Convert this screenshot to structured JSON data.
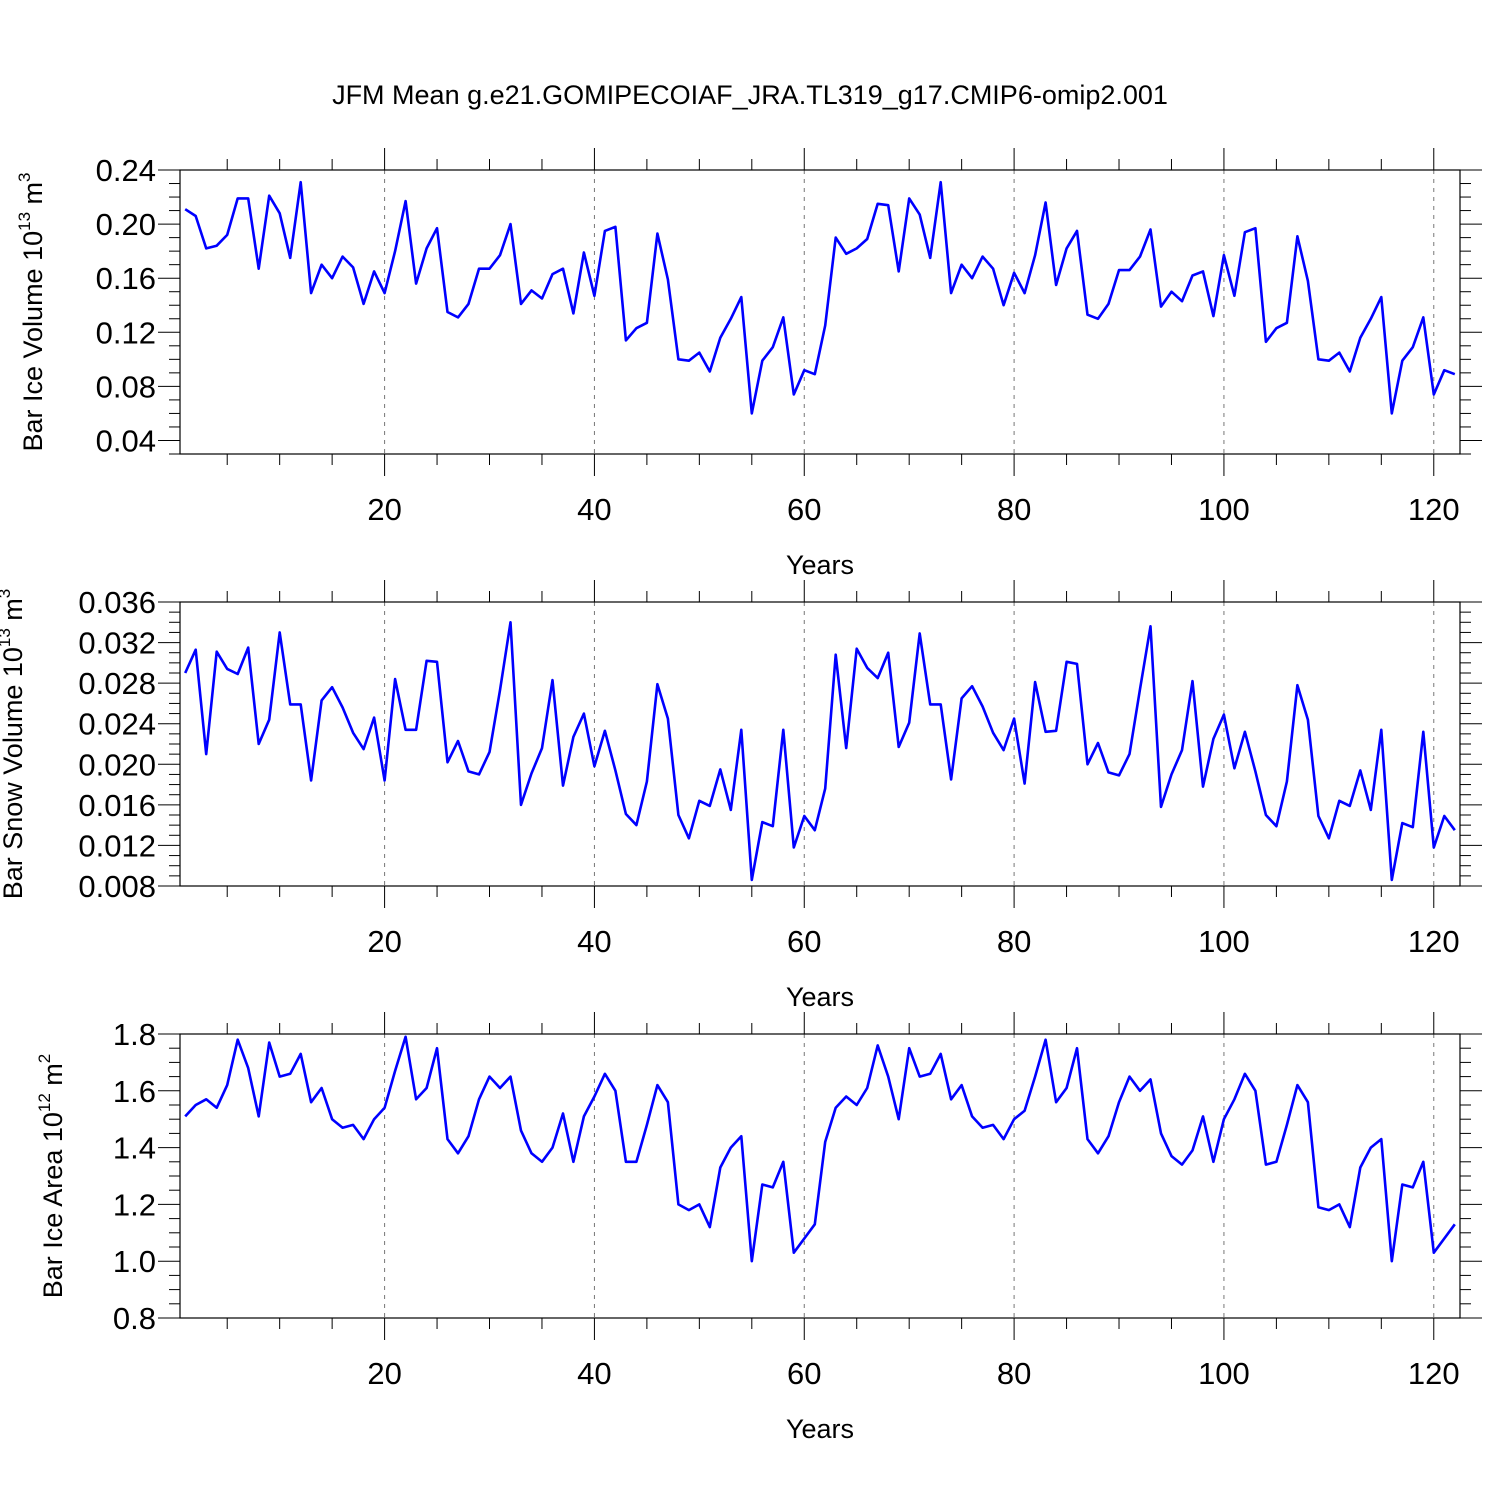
{
  "title": "JFM Mean g.e21.GOMIPECOIAF_JRA.TL319_g17.CMIP6-omip2.001",
  "chart_data": [
    {
      "type": "line",
      "ylabel_main": "Bar Ice Volume 10",
      "ylabel_sup": "13",
      "ylabel_unit": "m",
      "ylabel_unit_sup": "3",
      "xlabel": "Years",
      "xlim": [
        0.5,
        122.5
      ],
      "ylim": [
        0.03,
        0.24
      ],
      "xticks": [
        20,
        40,
        60,
        80,
        100,
        120
      ],
      "yticks": [
        0.04,
        0.08,
        0.12,
        0.16,
        0.2,
        0.24
      ],
      "ytick_labels": [
        "0.04",
        "0.08",
        "0.12",
        "0.16",
        "0.20",
        "0.24"
      ],
      "x_start": 1,
      "line_color": "#0000ff",
      "values": [
        0.211,
        0.206,
        0.182,
        0.184,
        0.192,
        0.219,
        0.219,
        0.167,
        0.221,
        0.208,
        0.175,
        0.231,
        0.149,
        0.17,
        0.16,
        0.176,
        0.168,
        0.141,
        0.165,
        0.149,
        0.18,
        0.217,
        0.156,
        0.182,
        0.197,
        0.135,
        0.131,
        0.141,
        0.167,
        0.167,
        0.177,
        0.2,
        0.141,
        0.151,
        0.145,
        0.163,
        0.167,
        0.134,
        0.179,
        0.147,
        0.195,
        0.198,
        0.114,
        0.123,
        0.127,
        0.193,
        0.159,
        0.1,
        0.099,
        0.105,
        0.091,
        0.116,
        0.13,
        0.146,
        0.06,
        0.099,
        0.109,
        0.131,
        0.074,
        0.092,
        0.089,
        0.125,
        0.19,
        0.178,
        0.182,
        0.189,
        0.215,
        0.214,
        0.165,
        0.219,
        0.207,
        0.175,
        0.231,
        0.149,
        0.17,
        0.16,
        0.176,
        0.167,
        0.14,
        0.164,
        0.149,
        0.177,
        0.216,
        0.155,
        0.182,
        0.195,
        0.133,
        0.13,
        0.141,
        0.166,
        0.166,
        0.176,
        0.196,
        0.139,
        0.15,
        0.143,
        0.162,
        0.165,
        0.132,
        0.177,
        0.147,
        0.194,
        0.197,
        0.113,
        0.123,
        0.127,
        0.191,
        0.158,
        0.1,
        0.099,
        0.105,
        0.091,
        0.116,
        0.13,
        0.146,
        0.06,
        0.099,
        0.109,
        0.131,
        0.074,
        0.092,
        0.089
      ]
    },
    {
      "type": "line",
      "ylabel_main": "Bar Snow Volume 10",
      "ylabel_sup": "13",
      "ylabel_unit": "m",
      "ylabel_unit_sup": "3",
      "xlabel": "Years",
      "xlim": [
        0.5,
        122.5
      ],
      "ylim": [
        0.008,
        0.036
      ],
      "xticks": [
        20,
        40,
        60,
        80,
        100,
        120
      ],
      "yticks": [
        0.008,
        0.012,
        0.016,
        0.02,
        0.024,
        0.028,
        0.032,
        0.036
      ],
      "ytick_labels": [
        "0.008",
        "0.012",
        "0.016",
        "0.020",
        "0.024",
        "0.028",
        "0.032",
        "0.036"
      ],
      "x_start": 1,
      "line_color": "#0000ff",
      "values": [
        0.029,
        0.0313,
        0.021,
        0.0311,
        0.0294,
        0.0289,
        0.0315,
        0.022,
        0.0244,
        0.033,
        0.0259,
        0.0259,
        0.0184,
        0.0263,
        0.0276,
        0.0256,
        0.0231,
        0.0215,
        0.0246,
        0.0184,
        0.0284,
        0.0234,
        0.0234,
        0.0302,
        0.0301,
        0.0202,
        0.0223,
        0.0193,
        0.019,
        0.0212,
        0.0273,
        0.034,
        0.016,
        0.0191,
        0.0216,
        0.0283,
        0.0179,
        0.0227,
        0.025,
        0.0198,
        0.0233,
        0.0194,
        0.0151,
        0.014,
        0.0183,
        0.0279,
        0.0245,
        0.015,
        0.0127,
        0.0164,
        0.0159,
        0.0195,
        0.0155,
        0.0234,
        0.0086,
        0.0143,
        0.0139,
        0.0234,
        0.0118,
        0.0149,
        0.0135,
        0.0176,
        0.0308,
        0.0216,
        0.0314,
        0.0295,
        0.0285,
        0.031,
        0.0217,
        0.0241,
        0.0329,
        0.0259,
        0.0259,
        0.0185,
        0.0265,
        0.0277,
        0.0257,
        0.0231,
        0.0214,
        0.0245,
        0.0181,
        0.0281,
        0.0232,
        0.0233,
        0.0301,
        0.0299,
        0.02,
        0.0221,
        0.0192,
        0.0189,
        0.021,
        0.0274,
        0.0336,
        0.0158,
        0.019,
        0.0214,
        0.0282,
        0.0178,
        0.0225,
        0.0249,
        0.0196,
        0.0232,
        0.0193,
        0.015,
        0.0139,
        0.0183,
        0.0278,
        0.0244,
        0.0149,
        0.0127,
        0.0164,
        0.0159,
        0.0194,
        0.0155,
        0.0234,
        0.0086,
        0.0142,
        0.0138,
        0.0232,
        0.0118,
        0.0149,
        0.0135
      ]
    },
    {
      "type": "line",
      "ylabel_main": "Bar Ice Area 10",
      "ylabel_sup": "12",
      "ylabel_unit": "m",
      "ylabel_unit_sup": "2",
      "xlabel": "Years",
      "xlim": [
        0.5,
        122.5
      ],
      "ylim": [
        0.8,
        1.8
      ],
      "xticks": [
        20,
        40,
        60,
        80,
        100,
        120
      ],
      "yticks": [
        0.8,
        1.0,
        1.2,
        1.4,
        1.6,
        1.8
      ],
      "ytick_labels": [
        "0.8",
        "1.0",
        "1.2",
        "1.4",
        "1.6",
        "1.8"
      ],
      "x_start": 1,
      "line_color": "#0000ff",
      "values": [
        1.51,
        1.55,
        1.57,
        1.54,
        1.62,
        1.78,
        1.68,
        1.51,
        1.77,
        1.65,
        1.66,
        1.73,
        1.56,
        1.61,
        1.5,
        1.47,
        1.48,
        1.43,
        1.5,
        1.54,
        1.67,
        1.79,
        1.57,
        1.61,
        1.75,
        1.43,
        1.38,
        1.44,
        1.57,
        1.65,
        1.61,
        1.65,
        1.46,
        1.38,
        1.35,
        1.4,
        1.52,
        1.35,
        1.51,
        1.58,
        1.66,
        1.6,
        1.35,
        1.35,
        1.48,
        1.62,
        1.56,
        1.2,
        1.18,
        1.2,
        1.12,
        1.33,
        1.4,
        1.44,
        1.0,
        1.27,
        1.26,
        1.35,
        1.03,
        1.08,
        1.13,
        1.42,
        1.54,
        1.58,
        1.55,
        1.61,
        1.76,
        1.65,
        1.5,
        1.75,
        1.65,
        1.66,
        1.73,
        1.57,
        1.62,
        1.51,
        1.47,
        1.48,
        1.43,
        1.5,
        1.53,
        1.65,
        1.78,
        1.56,
        1.61,
        1.75,
        1.43,
        1.38,
        1.44,
        1.56,
        1.65,
        1.6,
        1.64,
        1.45,
        1.37,
        1.34,
        1.39,
        1.51,
        1.35,
        1.5,
        1.57,
        1.66,
        1.6,
        1.34,
        1.35,
        1.48,
        1.62,
        1.56,
        1.19,
        1.18,
        1.2,
        1.12,
        1.33,
        1.4,
        1.43,
        1.0,
        1.27,
        1.26,
        1.35,
        1.03,
        1.08,
        1.13
      ]
    }
  ]
}
